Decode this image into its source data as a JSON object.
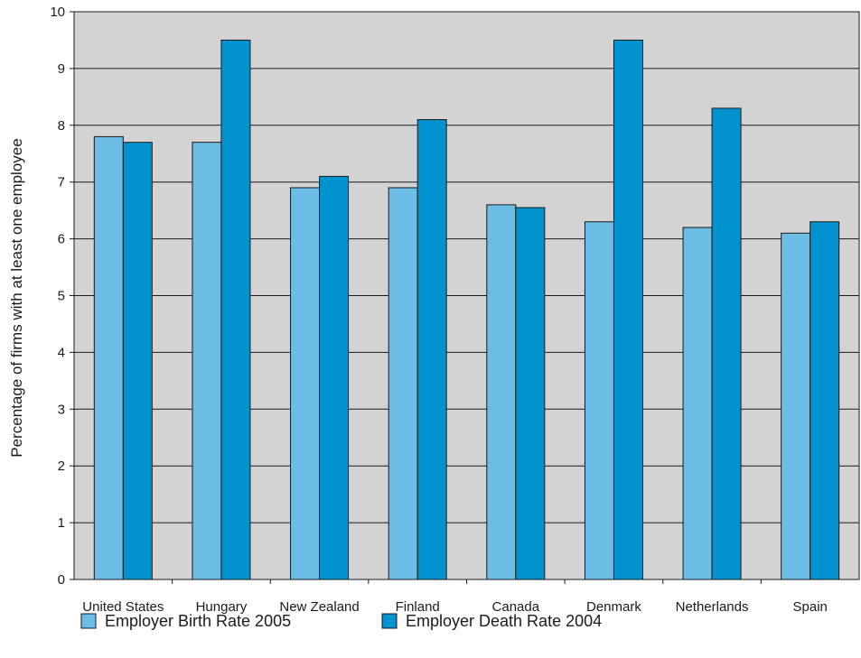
{
  "chart_data": {
    "type": "bar",
    "categories": [
      "United States",
      "Hungary",
      "New Zealand",
      "Finland",
      "Canada",
      "Denmark",
      "Netherlands",
      "Spain"
    ],
    "series": [
      {
        "name": "Employer Birth Rate 2005",
        "color": "#6bbde6",
        "values": [
          7.8,
          7.7,
          6.9,
          6.9,
          6.6,
          6.3,
          6.2,
          6.1
        ]
      },
      {
        "name": "Employer Death Rate 2004",
        "color": "#0093d0",
        "values": [
          7.7,
          9.5,
          7.1,
          8.1,
          6.55,
          9.5,
          8.3,
          6.3
        ]
      }
    ],
    "title": "",
    "xlabel": "",
    "ylabel": "Percentage of firms with at least one employee",
    "ylim": [
      0,
      10
    ],
    "yticks": [
      0,
      1,
      2,
      3,
      4,
      5,
      6,
      7,
      8,
      9,
      10
    ],
    "grid": true,
    "plot_background": "#d3d3d3",
    "legend_position": "bottom-left"
  }
}
